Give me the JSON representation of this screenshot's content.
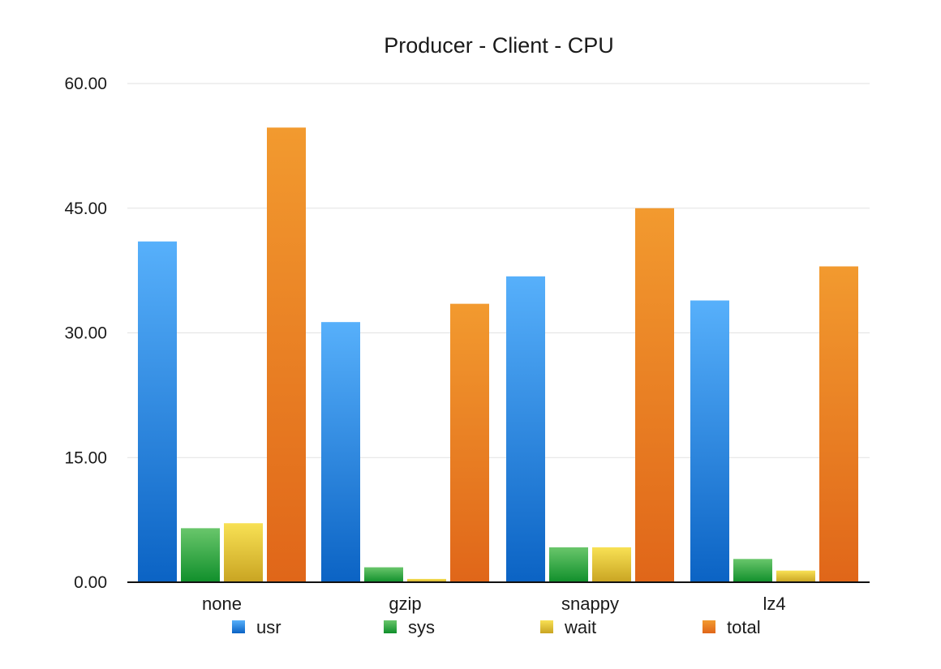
{
  "chart_data": {
    "type": "bar",
    "title": "Producer - Client - CPU",
    "categories": [
      "none",
      "gzip",
      "snappy",
      "lz4"
    ],
    "series": [
      {
        "name": "usr",
        "values": [
          41.0,
          31.3,
          36.8,
          33.9
        ]
      },
      {
        "name": "sys",
        "values": [
          6.5,
          1.8,
          4.2,
          2.8
        ]
      },
      {
        "name": "wait",
        "values": [
          7.1,
          0.4,
          4.2,
          1.4
        ]
      },
      {
        "name": "total",
        "values": [
          54.7,
          33.5,
          45.0,
          38.0
        ]
      }
    ],
    "ylim": [
      0,
      60
    ],
    "yticks": [
      "0.00",
      "15.00",
      "30.00",
      "45.00",
      "60.00"
    ],
    "grid": true,
    "legend_position": "bottom",
    "colors": {
      "usr": [
        "#57b0fb",
        "#0b63c4"
      ],
      "sys": [
        "#69c66b",
        "#108f2b"
      ],
      "wait": [
        "#f8e154",
        "#c9a422"
      ],
      "total": [
        "#f29a2f",
        "#e06619"
      ]
    }
  }
}
